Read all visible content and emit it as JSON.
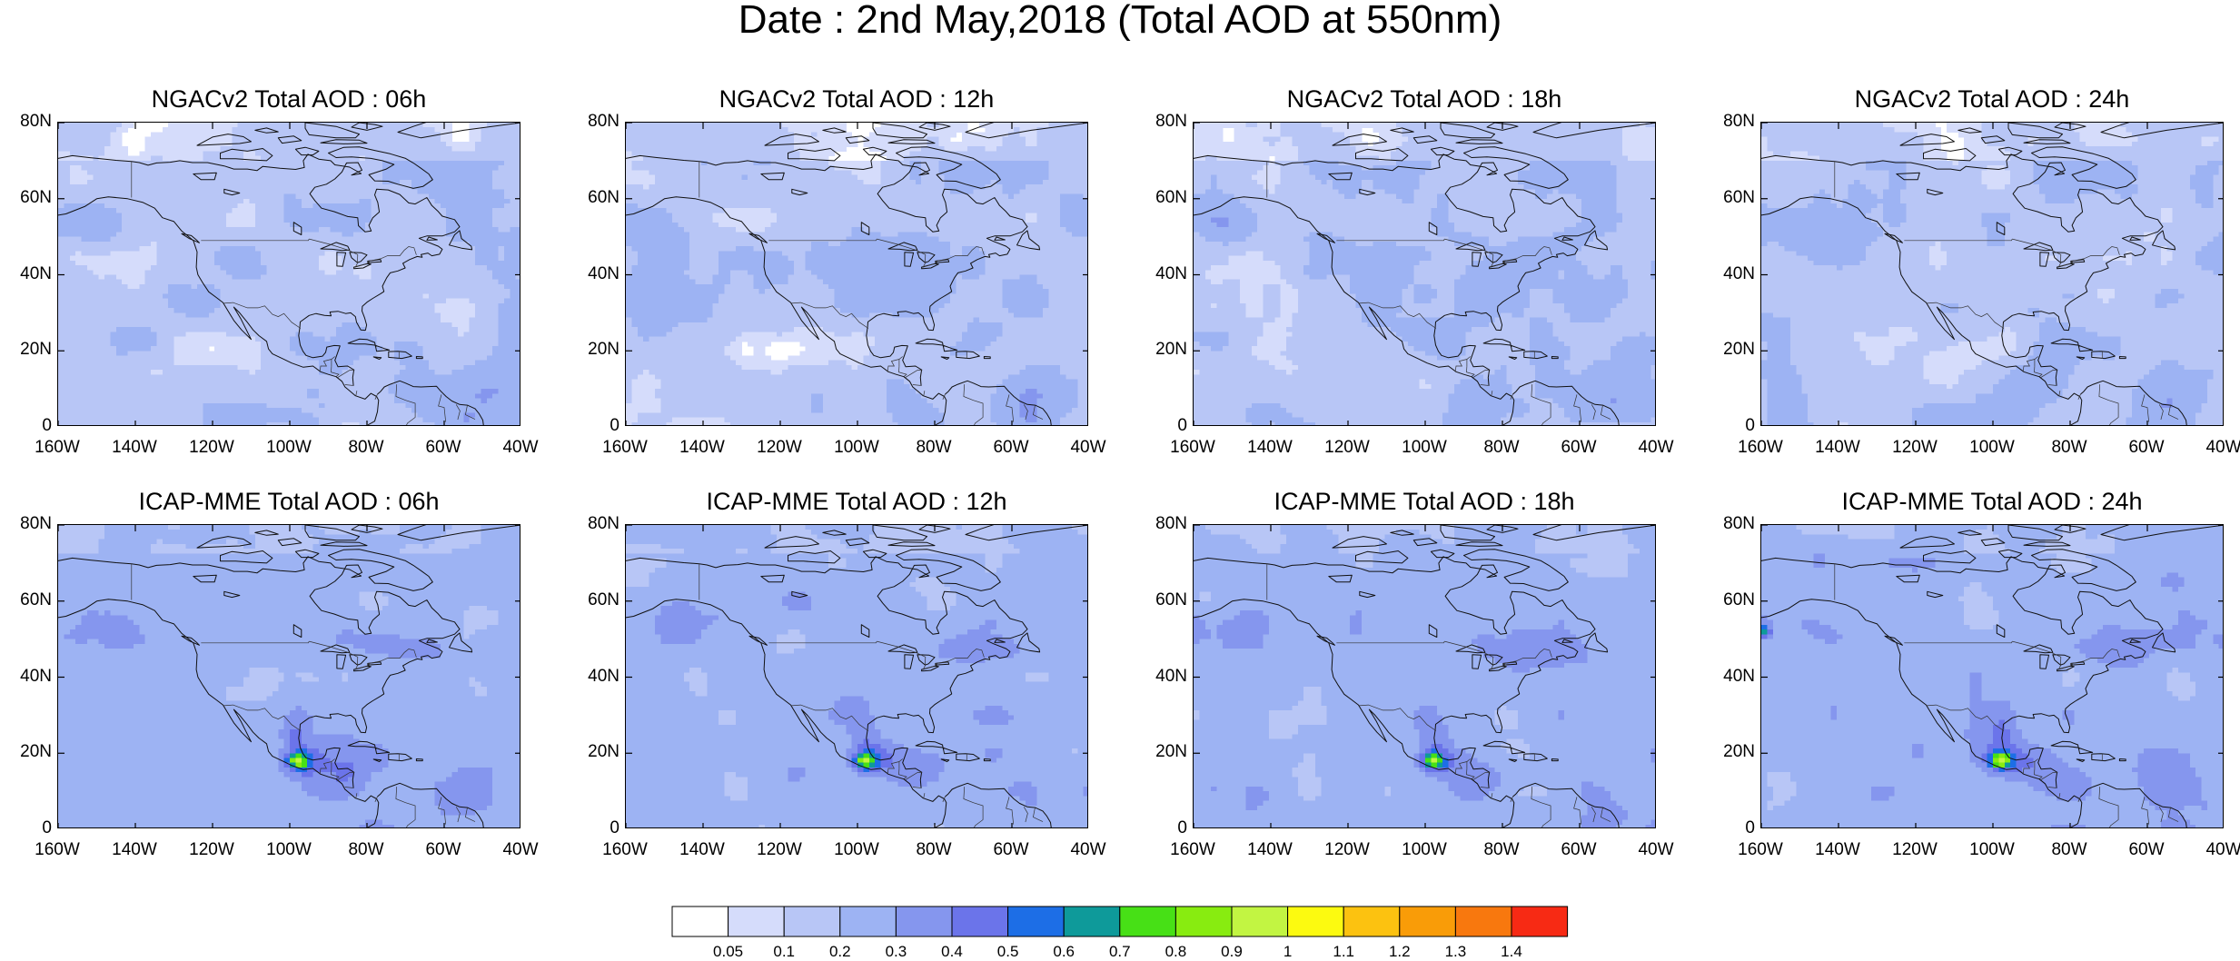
{
  "title": "Date : 2nd May,2018 (Total AOD at 550nm)",
  "panels": [
    {
      "title": "NGACv2 Total AOD : 06h",
      "model": "NGAC",
      "hour": 6
    },
    {
      "title": "NGACv2 Total AOD : 12h",
      "model": "NGAC",
      "hour": 12
    },
    {
      "title": "NGACv2 Total AOD : 18h",
      "model": "NGAC",
      "hour": 18
    },
    {
      "title": "NGACv2 Total AOD : 24h",
      "model": "NGAC",
      "hour": 24
    },
    {
      "title": "ICAP-MME Total AOD : 06h",
      "model": "ICAP",
      "hour": 6
    },
    {
      "title": "ICAP-MME Total AOD : 12h",
      "model": "ICAP",
      "hour": 12
    },
    {
      "title": "ICAP-MME Total AOD : 18h",
      "model": "ICAP",
      "hour": 18
    },
    {
      "title": "ICAP-MME Total AOD : 24h",
      "model": "ICAP",
      "hour": 24
    }
  ],
  "y_ticks": [
    "80N",
    "60N",
    "40N",
    "20N",
    "0"
  ],
  "x_ticks": [
    "160W",
    "140W",
    "120W",
    "100W",
    "80W",
    "60W",
    "40W"
  ],
  "map_extent": {
    "lon": [
      -160,
      -40
    ],
    "lat": [
      0,
      80
    ]
  },
  "colorbar": {
    "labels": [
      "0.05",
      "0.1",
      "0.2",
      "0.3",
      "0.4",
      "0.5",
      "0.6",
      "0.7",
      "0.8",
      "0.9",
      "1",
      "1.1",
      "1.2",
      "1.3",
      "1.4"
    ],
    "colors": [
      "#ffffff",
      "#d5dcfb",
      "#b8c6f6",
      "#9db3f3",
      "#8596ee",
      "#6b74ea",
      "#1d6ee6",
      "#0e9a9a",
      "#47e016",
      "#88ec10",
      "#c2f542",
      "#fcfa10",
      "#fcc210",
      "#f99c08",
      "#f8780e",
      "#f72a14"
    ]
  }
}
